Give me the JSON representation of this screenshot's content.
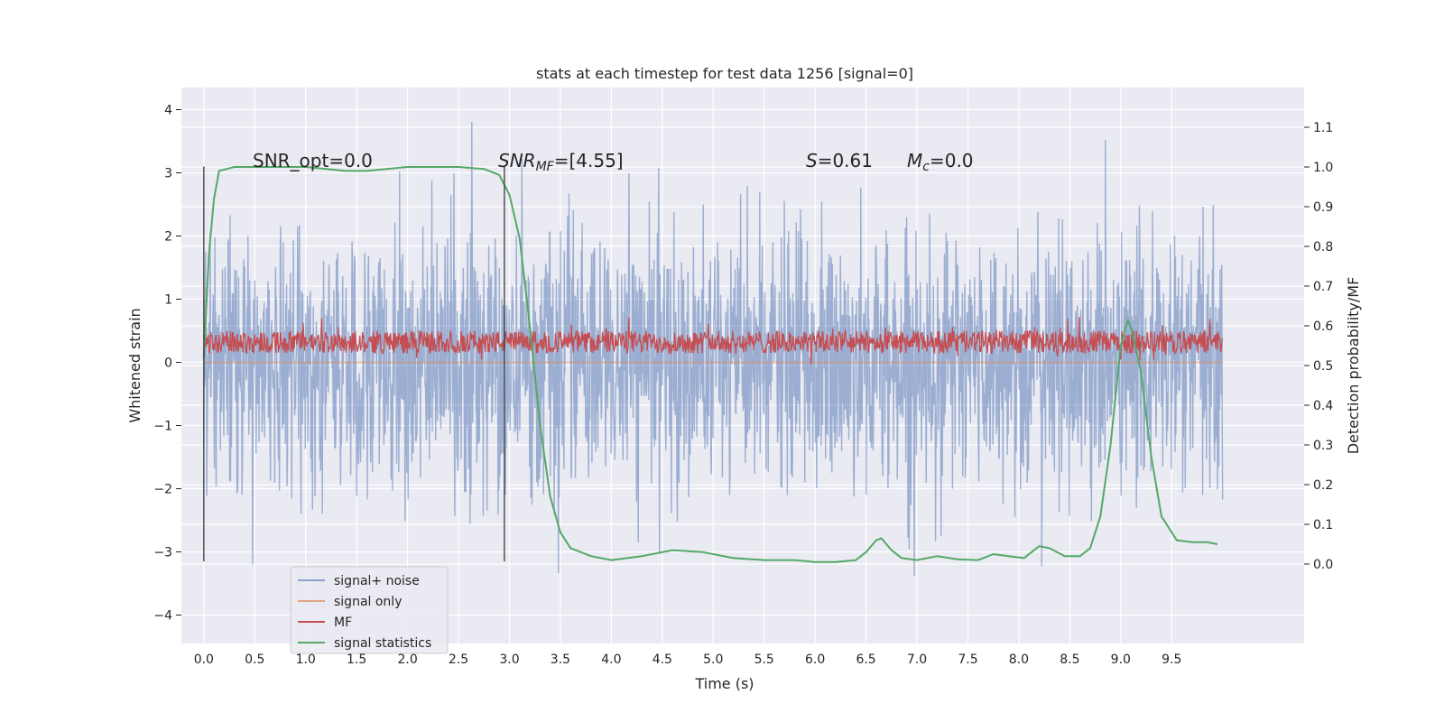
{
  "chart_data": {
    "type": "line",
    "title": "stats at each timestep for test data 1256 [signal=0]",
    "xlabel": "Time (s)",
    "ylabel": "Whitened strain",
    "ylabel_right": "Detection probability/MF",
    "xlim": [
      -0.22,
      10.8
    ],
    "ylim": [
      -4.45,
      4.35
    ],
    "ylim_right": [
      -0.2,
      1.2
    ],
    "x_ticks": [
      "0.0",
      "0.5",
      "1.0",
      "1.5",
      "2.0",
      "2.5",
      "3.0",
      "3.5",
      "4.0",
      "4.5",
      "5.0",
      "5.5",
      "6.0",
      "6.5",
      "7.0",
      "7.5",
      "8.0",
      "8.5",
      "9.0",
      "9.5"
    ],
    "y_ticks": [
      "4",
      "3",
      "2",
      "1",
      "0",
      "−1",
      "−2",
      "−3",
      "−4"
    ],
    "y_ticks_right": [
      "1.1",
      "1.0",
      "0.9",
      "0.8",
      "0.7",
      "0.6",
      "0.5",
      "0.4",
      "0.3",
      "0.2",
      "0.1",
      "0.0"
    ],
    "grid": true,
    "legend_position": "lower-left",
    "background": "#eaeaf2",
    "annotations": {
      "snr_opt": "SNR_opt=0.0",
      "snr_mf_prefix": "SNR",
      "snr_mf_sub": "MF",
      "snr_mf_suffix": "=[4.55]",
      "s_prefix": "S",
      "s_suffix": "=0.61",
      "mc_prefix": "M",
      "mc_sub": "c",
      "mc_suffix": "=0.0"
    },
    "vlines": [
      {
        "x": 0.0,
        "ymin": -3.15,
        "ymax": 3.1
      },
      {
        "x": 2.95,
        "ymin": -3.15,
        "ymax": 3.1
      }
    ],
    "series": [
      {
        "name": "signal+ noise",
        "color": "#4c72b0",
        "axis": "left",
        "x_range": [
          0.0,
          10.0
        ],
        "envelope_sigma": 1.0
      },
      {
        "name": "signal only",
        "color": "#dd8452",
        "axis": "left",
        "x": [
          0.0,
          10.0
        ],
        "y": [
          0.0,
          0.0
        ]
      },
      {
        "name": "MF",
        "color": "#c44e52",
        "axis": "left",
        "x_range": [
          0.0,
          10.0
        ],
        "mean": 0.32,
        "spread": 0.18
      },
      {
        "name": "signal statistics",
        "color": "#55a868",
        "axis": "right",
        "x": [
          0.0,
          0.05,
          0.1,
          0.15,
          0.3,
          0.6,
          1.0,
          1.4,
          1.6,
          2.0,
          2.5,
          2.75,
          2.9,
          3.0,
          3.1,
          3.2,
          3.3,
          3.4,
          3.5,
          3.6,
          3.8,
          4.0,
          4.3,
          4.6,
          4.9,
          5.2,
          5.5,
          5.8,
          6.0,
          6.2,
          6.4,
          6.5,
          6.6,
          6.65,
          6.75,
          6.85,
          7.0,
          7.2,
          7.4,
          7.6,
          7.75,
          7.9,
          8.05,
          8.2,
          8.3,
          8.45,
          8.6,
          8.7,
          8.8,
          8.9,
          9.0,
          9.07,
          9.12,
          9.2,
          9.3,
          9.4,
          9.55,
          9.7,
          9.85,
          9.95
        ],
        "y": [
          0.52,
          0.78,
          0.92,
          0.99,
          1.0,
          1.0,
          1.0,
          0.99,
          0.99,
          1.0,
          1.0,
          0.995,
          0.98,
          0.93,
          0.82,
          0.6,
          0.35,
          0.17,
          0.08,
          0.04,
          0.02,
          0.01,
          0.02,
          0.035,
          0.03,
          0.015,
          0.01,
          0.01,
          0.005,
          0.005,
          0.01,
          0.03,
          0.06,
          0.065,
          0.035,
          0.015,
          0.01,
          0.02,
          0.012,
          0.01,
          0.025,
          0.02,
          0.015,
          0.045,
          0.04,
          0.02,
          0.02,
          0.04,
          0.12,
          0.3,
          0.55,
          0.615,
          0.58,
          0.48,
          0.27,
          0.12,
          0.06,
          0.055,
          0.055,
          0.05
        ]
      }
    ]
  }
}
